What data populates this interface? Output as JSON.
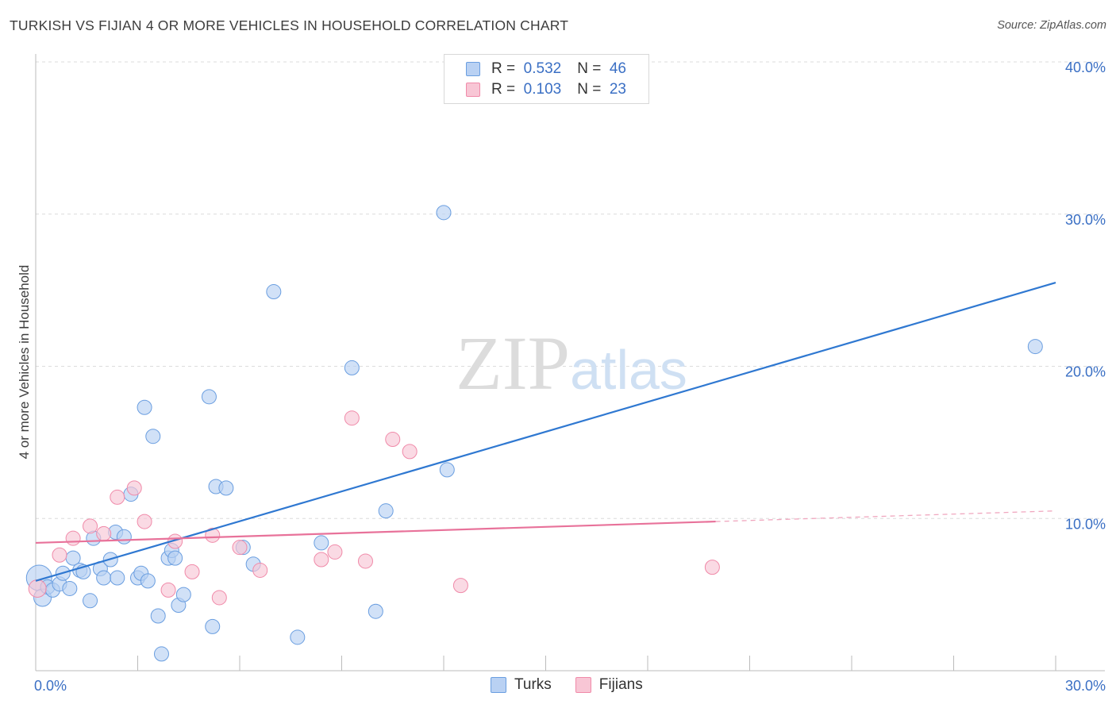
{
  "chart_data": {
    "type": "scatter",
    "title": "TURKISH VS FIJIAN 4 OR MORE VEHICLES IN HOUSEHOLD CORRELATION CHART",
    "source": "Source: ZipAtlas.com",
    "xlabel": "",
    "ylabel": "4 or more Vehicles in Household",
    "xlim": [
      0,
      30
    ],
    "ylim": [
      0,
      40
    ],
    "x_tick_labels": [
      "0.0%",
      "30.0%"
    ],
    "y_ticks": [
      10,
      20,
      30,
      40
    ],
    "y_tick_labels": [
      "10.0%",
      "20.0%",
      "30.0%",
      "40.0%"
    ],
    "watermark": "ZIPatlas",
    "series": [
      {
        "name": "Turks",
        "color": "#6a9ee0",
        "fill": "#b9d1f3",
        "R": "0.532",
        "N": "46",
        "trend": {
          "x0": 0,
          "y0": 5.9,
          "x1": 30,
          "y1": 25.5,
          "style": "solid"
        },
        "points": [
          [
            0.1,
            6.1,
            16
          ],
          [
            0.2,
            4.8,
            11
          ],
          [
            0.35,
            5.5,
            9
          ],
          [
            0.5,
            5.3,
            9
          ],
          [
            0.7,
            5.7,
            9
          ],
          [
            0.8,
            6.4,
            9
          ],
          [
            1.0,
            5.4,
            9
          ],
          [
            1.1,
            7.4,
            9
          ],
          [
            1.3,
            6.6,
            9
          ],
          [
            1.4,
            6.5,
            9
          ],
          [
            1.6,
            4.6,
            9
          ],
          [
            1.7,
            8.7,
            9
          ],
          [
            1.9,
            6.7,
            9
          ],
          [
            2.0,
            6.1,
            9
          ],
          [
            2.2,
            7.3,
            9
          ],
          [
            2.35,
            9.1,
            9
          ],
          [
            2.4,
            6.1,
            9
          ],
          [
            2.6,
            8.8,
            9
          ],
          [
            2.8,
            11.6,
            9
          ],
          [
            3.0,
            6.1,
            9
          ],
          [
            3.1,
            6.4,
            9
          ],
          [
            3.2,
            17.3,
            9
          ],
          [
            3.3,
            5.9,
            9
          ],
          [
            3.45,
            15.4,
            9
          ],
          [
            3.6,
            3.6,
            9
          ],
          [
            3.7,
            1.1,
            9
          ],
          [
            3.9,
            7.4,
            9
          ],
          [
            4.0,
            7.9,
            9
          ],
          [
            4.1,
            7.4,
            9
          ],
          [
            4.2,
            4.3,
            9
          ],
          [
            4.35,
            5.0,
            9
          ],
          [
            5.1,
            18.0,
            9
          ],
          [
            5.2,
            2.9,
            9
          ],
          [
            5.3,
            12.1,
            9
          ],
          [
            5.6,
            12.0,
            9
          ],
          [
            6.1,
            8.1,
            9
          ],
          [
            6.4,
            7.0,
            9
          ],
          [
            7.0,
            24.9,
            9
          ],
          [
            7.7,
            2.2,
            9
          ],
          [
            8.4,
            8.4,
            9
          ],
          [
            9.3,
            19.9,
            9
          ],
          [
            10.0,
            3.9,
            9
          ],
          [
            10.3,
            10.5,
            9
          ],
          [
            12.0,
            30.1,
            9
          ],
          [
            12.1,
            13.2,
            9
          ],
          [
            29.4,
            21.3,
            9
          ]
        ]
      },
      {
        "name": "Fijians",
        "color": "#f08aa9",
        "fill": "#f8c6d5",
        "R": "0.103",
        "N": "23",
        "trend": {
          "x0": 0,
          "y0": 8.4,
          "x1": 20.0,
          "y1": 9.8,
          "dash_to": 30,
          "dash_y": 10.5
        },
        "points": [
          [
            0.05,
            5.4,
            11
          ],
          [
            0.7,
            7.6,
            9
          ],
          [
            1.1,
            8.7,
            9
          ],
          [
            1.6,
            9.5,
            9
          ],
          [
            2.0,
            9.0,
            9
          ],
          [
            2.4,
            11.4,
            9
          ],
          [
            2.9,
            12.0,
            9
          ],
          [
            3.2,
            9.8,
            9
          ],
          [
            3.9,
            5.3,
            9
          ],
          [
            4.1,
            8.5,
            9
          ],
          [
            4.6,
            6.5,
            9
          ],
          [
            5.2,
            8.9,
            9
          ],
          [
            5.4,
            4.8,
            9
          ],
          [
            6.0,
            8.1,
            9
          ],
          [
            6.6,
            6.6,
            9
          ],
          [
            8.4,
            7.3,
            9
          ],
          [
            8.8,
            7.8,
            9
          ],
          [
            9.3,
            16.6,
            9
          ],
          [
            9.7,
            7.2,
            9
          ],
          [
            10.5,
            15.2,
            9
          ],
          [
            11.0,
            14.4,
            9
          ],
          [
            12.5,
            5.6,
            9
          ],
          [
            19.9,
            6.8,
            9
          ]
        ]
      }
    ]
  }
}
